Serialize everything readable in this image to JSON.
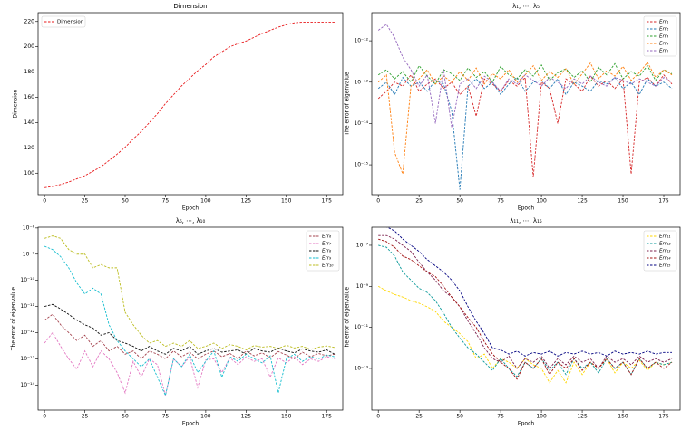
{
  "chart_data": [
    {
      "type": "line",
      "title": "Dimension",
      "xlabel": "Epoch",
      "ylabel": "Dimension",
      "legend": "upper left",
      "ylog": false,
      "grid": false,
      "x": [
        0,
        5,
        10,
        15,
        20,
        25,
        30,
        35,
        40,
        45,
        50,
        55,
        60,
        65,
        70,
        75,
        80,
        85,
        90,
        95,
        100,
        105,
        110,
        115,
        120,
        125,
        130,
        135,
        140,
        145,
        150,
        155,
        160,
        165,
        170,
        175,
        180
      ],
      "xlim": [
        -4,
        185
      ],
      "xticks": [
        0,
        25,
        50,
        75,
        100,
        125,
        150,
        175
      ],
      "ylim": [
        83,
        227
      ],
      "yticks": [
        100,
        120,
        140,
        160,
        180,
        200,
        220
      ],
      "series": [
        {
          "name": "Dimension",
          "color": "#e8191b",
          "values": [
            88.5,
            89.5,
            91,
            93,
            95.5,
            98,
            101.5,
            105,
            110,
            115,
            120.5,
            127,
            133,
            140,
            147,
            155,
            162,
            169,
            175,
            181,
            186,
            192,
            196,
            200,
            202.5,
            204.5,
            207.5,
            210.5,
            213,
            215.5,
            217.5,
            219,
            219.5,
            219.5,
            219.5,
            219.5,
            219.5
          ]
        }
      ]
    },
    {
      "type": "line",
      "title": "λ₁, ⋯, λ₅",
      "xlabel": "Epoch",
      "ylabel": "The error of eigenvalue",
      "legend": "upper right",
      "ylog": true,
      "grid": false,
      "x": [
        0,
        5,
        10,
        15,
        20,
        25,
        30,
        35,
        40,
        45,
        50,
        55,
        60,
        65,
        70,
        75,
        80,
        85,
        90,
        95,
        100,
        105,
        110,
        115,
        120,
        125,
        130,
        135,
        140,
        145,
        150,
        155,
        160,
        165,
        170,
        175,
        180
      ],
      "xlim": [
        -4,
        185
      ],
      "xticks": [
        0,
        25,
        50,
        75,
        100,
        125,
        150,
        175
      ],
      "ylim": [
        1.9e-16,
        4.8e-12
      ],
      "yticks": [
        {
          "value": 1e-15,
          "label": "10⁻¹⁵"
        },
        {
          "value": 1e-14,
          "label": "10⁻¹⁴"
        },
        {
          "value": 1e-13,
          "label": "10⁻¹³"
        },
        {
          "value": 1e-12,
          "label": "10⁻¹²"
        }
      ],
      "series": [
        {
          "name": "Err₁",
          "color": "#d62728",
          "values": [
            4e-14,
            6e-14,
            1e-13,
            8e-14,
            1.5e-13,
            6e-14,
            9e-14,
            1.2e-13,
            7e-14,
            1e-13,
            5e-14,
            8e-14,
            1.5e-14,
            1.2e-13,
            9e-14,
            6e-14,
            1.1e-13,
            8e-14,
            1.3e-13,
            5e-16,
            1e-13,
            7e-14,
            1e-14,
            1.2e-13,
            9e-14,
            6e-14,
            1.4e-13,
            8e-14,
            1.1e-13,
            7e-14,
            1.2e-13,
            6e-16,
            1e-13,
            1.3e-13,
            8e-14,
            1.5e-13,
            9e-14
          ]
        },
        {
          "name": "Err₂",
          "color": "#1f77b4",
          "values": [
            7e-14,
            1e-13,
            5e-14,
            1.3e-13,
            8e-14,
            1e-13,
            6e-14,
            1.1e-13,
            9e-14,
            2e-14,
            2.5e-16,
            8e-14,
            1.2e-13,
            7e-14,
            1e-13,
            5e-14,
            9e-14,
            1.3e-13,
            6e-14,
            1e-13,
            1.1e-13,
            7e-14,
            1.2e-13,
            5e-14,
            1e-13,
            8e-14,
            6e-14,
            1.1e-13,
            9e-14,
            1.3e-13,
            7e-14,
            1e-13,
            5e-14,
            1.2e-13,
            8e-14,
            1e-13,
            7e-14
          ]
        },
        {
          "name": "Err₃",
          "color": "#2ca02c",
          "values": [
            1.5e-13,
            2e-13,
            1.2e-13,
            1.8e-13,
            1e-13,
            2.5e-13,
            1.4e-13,
            9e-14,
            2e-13,
            1.6e-13,
            1.1e-13,
            2.2e-13,
            1.3e-13,
            1.8e-13,
            1e-13,
            2.4e-13,
            1.5e-13,
            1.2e-13,
            2e-13,
            1.4e-13,
            2.6e-13,
            1.1e-13,
            1.7e-13,
            2.1e-13,
            1.3e-13,
            1.9e-13,
            1e-13,
            2.3e-13,
            1.5e-13,
            2.8e-13,
            1.2e-13,
            1.8e-13,
            1.4e-13,
            2.5e-13,
            1.1e-13,
            2e-13,
            1.6e-13
          ]
        },
        {
          "name": "Err₄",
          "color": "#ff7f0e",
          "values": [
            1e-13,
            1.5e-13,
            2e-15,
            6e-16,
            8e-14,
            1.2e-13,
            2e-13,
            9e-14,
            1.4e-13,
            1e-13,
            1.8e-13,
            1.1e-13,
            2.2e-13,
            9e-14,
            1.6e-13,
            1.2e-13,
            2e-13,
            1e-13,
            1.5e-13,
            2.5e-13,
            1.1e-13,
            1.8e-13,
            1.3e-13,
            2.1e-13,
            9e-14,
            1.6e-13,
            2.9e-13,
            1.2e-13,
            1.9e-13,
            1.4e-13,
            2.4e-13,
            1.1e-13,
            1.7e-13,
            3e-13,
            1.3e-13,
            2e-13,
            1.5e-13
          ]
        },
        {
          "name": "Err₅",
          "color": "#9467bd",
          "values": [
            1.8e-12,
            2.5e-12,
            1.2e-12,
            4e-13,
            2e-13,
            8e-14,
            1.5e-13,
            1e-14,
            2e-13,
            8e-15,
            9e-14,
            1.2e-13,
            7e-14,
            1.4e-13,
            1e-13,
            6e-14,
            1.2e-13,
            9e-14,
            1.5e-13,
            1.1e-13,
            8e-14,
            1.3e-13,
            1e-13,
            7e-14,
            1.2e-13,
            9e-14,
            1.4e-13,
            1e-13,
            8e-14,
            1.3e-13,
            1.1e-13,
            9e-14,
            1.2e-13,
            1e-13,
            8e-14,
            1.3e-13,
            1e-13
          ]
        }
      ]
    },
    {
      "type": "line",
      "title": "λ₆, ⋯, λ₁₀",
      "xlabel": "Epoch",
      "ylabel": "The error of eigenvalue",
      "legend": "upper right",
      "ylog": true,
      "grid": false,
      "x": [
        0,
        5,
        10,
        15,
        20,
        25,
        30,
        35,
        40,
        45,
        50,
        55,
        60,
        65,
        70,
        75,
        80,
        85,
        90,
        95,
        100,
        105,
        110,
        115,
        120,
        125,
        130,
        135,
        140,
        145,
        150,
        155,
        160,
        165,
        170,
        175,
        180
      ],
      "xlim": [
        -4,
        185
      ],
      "xticks": [
        0,
        25,
        50,
        75,
        100,
        125,
        150,
        175
      ],
      "ylim": [
        1.1e-15,
        1.07e-08
      ],
      "yticks": [
        {
          "value": 1e-14,
          "label": "10⁻¹⁴"
        },
        {
          "value": 1e-13,
          "label": "10⁻¹³"
        },
        {
          "value": 1e-12,
          "label": "10⁻¹²"
        },
        {
          "value": 1e-11,
          "label": "10⁻¹¹"
        },
        {
          "value": 1e-10,
          "label": "10⁻¹⁰"
        },
        {
          "value": 1e-09,
          "label": "10⁻⁹"
        },
        {
          "value": 1e-08,
          "label": "10⁻⁸"
        }
      ],
      "series": [
        {
          "name": "Err₆",
          "color": "#a5444f",
          "values": [
            3e-12,
            5e-12,
            2e-12,
            1e-12,
            5e-13,
            8e-13,
            3e-13,
            5e-13,
            2e-13,
            3e-13,
            1.5e-13,
            2e-13,
            1e-13,
            2e-13,
            1.5e-13,
            1e-13,
            2e-13,
            1.2e-13,
            1.8e-13,
            1e-13,
            1.5e-13,
            2e-13,
            1.2e-13,
            1.6e-13,
            1e-13,
            2e-13,
            1.3e-13,
            1.7e-13,
            1.1e-13,
            1.9e-13,
            1.4e-13,
            1e-13,
            1.8e-13,
            1.2e-13,
            1.6e-13,
            1.3e-13,
            1.5e-13
          ]
        },
        {
          "name": "Err₇",
          "color": "#e377c2",
          "values": [
            4e-13,
            1e-12,
            3e-13,
            1e-13,
            4e-14,
            2e-13,
            5e-14,
            2e-13,
            1e-13,
            3e-14,
            5e-15,
            8e-14,
            2e-14,
            1e-13,
            6e-14,
            4e-15,
            1e-13,
            5e-14,
            1.2e-13,
            8e-15,
            9e-14,
            1e-13,
            3e-14,
            1.1e-13,
            6e-14,
            1.2e-13,
            8e-14,
            1e-13,
            2e-14,
            1.1e-13,
            7e-14,
            1.2e-13,
            6e-14,
            1e-13,
            8e-14,
            1.2e-13,
            1e-13
          ]
        },
        {
          "name": "Err₈",
          "color": "#111111",
          "values": [
            1e-11,
            1.2e-11,
            8e-12,
            5e-12,
            3e-12,
            2e-12,
            1.5e-12,
            8e-13,
            1e-12,
            5e-13,
            4e-13,
            3e-13,
            2e-13,
            3e-13,
            2e-13,
            1.5e-13,
            2.5e-13,
            2e-13,
            3e-13,
            1.5e-13,
            2e-13,
            2.5e-13,
            1.8e-13,
            2e-13,
            2.2e-13,
            1.5e-13,
            2.5e-13,
            2e-13,
            1.8e-13,
            2.6e-13,
            2e-13,
            1.7e-13,
            2.4e-13,
            2e-13,
            1.8e-13,
            2.2e-13,
            1.5e-13
          ]
        },
        {
          "name": "Err₉",
          "color": "#17becf",
          "values": [
            2e-09,
            1.5e-09,
            8e-10,
            3e-10,
            8e-11,
            3e-11,
            5e-11,
            3e-11,
            2e-12,
            5e-13,
            2e-13,
            1e-13,
            5e-14,
            1e-13,
            2e-14,
            4e-15,
            1e-13,
            5e-14,
            1.5e-13,
            3e-14,
            8e-14,
            2e-13,
            2e-14,
            1.2e-13,
            8e-14,
            1.5e-13,
            1e-13,
            7e-14,
            1.3e-13,
            5e-15,
            1e-13,
            1.5e-13,
            8e-14,
            1.2e-13,
            1e-13,
            1.4e-13,
            1.2e-13
          ]
        },
        {
          "name": "Err₁₀",
          "color": "#bcbd22",
          "values": [
            4e-09,
            5e-09,
            4e-09,
            1.5e-09,
            1e-09,
            1e-09,
            3e-10,
            4e-10,
            3e-10,
            3e-10,
            6e-12,
            2e-12,
            8e-13,
            4e-13,
            5e-13,
            3e-13,
            4e-13,
            3e-13,
            5e-13,
            2.5e-13,
            3e-13,
            4e-13,
            2.5e-13,
            3.5e-13,
            3e-13,
            2.2e-13,
            3.2e-13,
            2.8e-13,
            3e-13,
            2.5e-13,
            3.3e-13,
            2.6e-13,
            3e-13,
            2.3e-13,
            2.8e-13,
            3.1e-13,
            2.7e-13
          ]
        }
      ]
    },
    {
      "type": "line",
      "title": "λ₁₁, ⋯, λ₁₅",
      "xlabel": "Epoch",
      "ylabel": "The error of eigenvalue",
      "legend": "upper right",
      "ylog": true,
      "grid": false,
      "x": [
        0,
        5,
        10,
        15,
        20,
        25,
        30,
        35,
        40,
        45,
        50,
        55,
        60,
        65,
        70,
        75,
        80,
        85,
        90,
        95,
        100,
        105,
        110,
        115,
        120,
        125,
        130,
        135,
        140,
        145,
        150,
        155,
        160,
        165,
        170,
        175,
        180
      ],
      "xlim": [
        -4,
        185
      ],
      "xticks": [
        0,
        25,
        50,
        75,
        100,
        125,
        150,
        175
      ],
      "ylim": [
        9.3e-16,
        7.6e-07
      ],
      "yticks": [
        {
          "value": 1e-13,
          "label": "10⁻¹³"
        },
        {
          "value": 1e-11,
          "label": "10⁻¹¹"
        },
        {
          "value": 1e-09,
          "label": "10⁻⁹"
        },
        {
          "value": 1e-07,
          "label": "10⁻⁷"
        }
      ],
      "series": [
        {
          "name": "Err₁₁",
          "color": "#ffd700",
          "values": [
            1e-09,
            6e-10,
            4e-10,
            3e-10,
            2e-10,
            1.5e-10,
            1e-10,
            6e-11,
            2e-11,
            1e-11,
            5e-12,
            2e-12,
            3e-13,
            5e-13,
            1e-13,
            3e-13,
            2e-13,
            1e-13,
            3e-13,
            1.5e-13,
            1e-13,
            2e-14,
            8e-14,
            2e-14,
            2e-13,
            5e-14,
            2e-13,
            1e-13,
            3e-13,
            6e-14,
            2e-13,
            1e-13,
            2.5e-13,
            8e-14,
            2e-13,
            1.5e-13,
            2e-13
          ]
        },
        {
          "name": "Err₁₂",
          "color": "#0b9a9a",
          "values": [
            1e-07,
            8e-08,
            3e-08,
            5e-09,
            2e-09,
            8e-10,
            5e-10,
            2e-10,
            5e-11,
            1e-11,
            3e-12,
            1e-12,
            5e-13,
            2e-13,
            8e-14,
            3e-13,
            1e-13,
            4e-14,
            2e-13,
            1e-13,
            3e-13,
            8e-14,
            2e-13,
            5e-14,
            3e-13,
            1e-13,
            2e-13,
            6e-14,
            3e-13,
            1e-13,
            2e-13,
            5e-14,
            3e-13,
            1e-13,
            2e-13,
            1.5e-13,
            2e-13
          ]
        },
        {
          "name": "Err₁₃",
          "color": "#7b1f4b",
          "values": [
            3e-07,
            3e-07,
            2e-07,
            1e-07,
            5e-08,
            1.5e-08,
            5e-09,
            2e-09,
            6e-10,
            3e-10,
            1e-10,
            2e-11,
            5e-12,
            1e-12,
            3e-13,
            2e-13,
            4e-13,
            1e-13,
            3e-13,
            2e-13,
            4e-13,
            1e-13,
            3e-13,
            1.5e-13,
            4e-13,
            2e-13,
            3e-13,
            1e-13,
            4e-13,
            2e-13,
            3e-13,
            1.5e-13,
            4e-13,
            2e-13,
            3e-13,
            2e-13,
            3e-13
          ]
        },
        {
          "name": "Err₁₄",
          "color": "#a01010",
          "values": [
            2e-07,
            1.5e-07,
            8e-08,
            3e-08,
            2e-08,
            1e-08,
            5e-09,
            3e-09,
            1e-09,
            3e-10,
            1e-10,
            3e-11,
            1e-11,
            2e-12,
            5e-13,
            2e-13,
            1e-13,
            3e-14,
            2e-13,
            1e-13,
            3e-13,
            5e-14,
            2e-13,
            1e-13,
            3e-13,
            8e-14,
            2e-13,
            1e-13,
            3e-13,
            1e-13,
            2e-13,
            5e-14,
            3e-13,
            1e-13,
            2e-13,
            1e-13,
            2e-13
          ]
        },
        {
          "name": "Err₁₅",
          "color": "#000080",
          "values": [
            1e-06,
            8e-07,
            5e-07,
            2e-07,
            1e-07,
            5e-08,
            2e-08,
            1e-08,
            5e-09,
            2e-09,
            6e-10,
            1e-10,
            2e-11,
            5e-12,
            1e-12,
            8e-13,
            5e-13,
            7e-13,
            4e-13,
            6e-13,
            5e-13,
            7e-13,
            4e-13,
            6e-13,
            5e-13,
            7e-13,
            5e-13,
            6e-13,
            4e-13,
            7e-13,
            5e-13,
            6e-13,
            5e-13,
            7e-13,
            5e-13,
            6e-13,
            6e-13
          ]
        }
      ]
    }
  ]
}
